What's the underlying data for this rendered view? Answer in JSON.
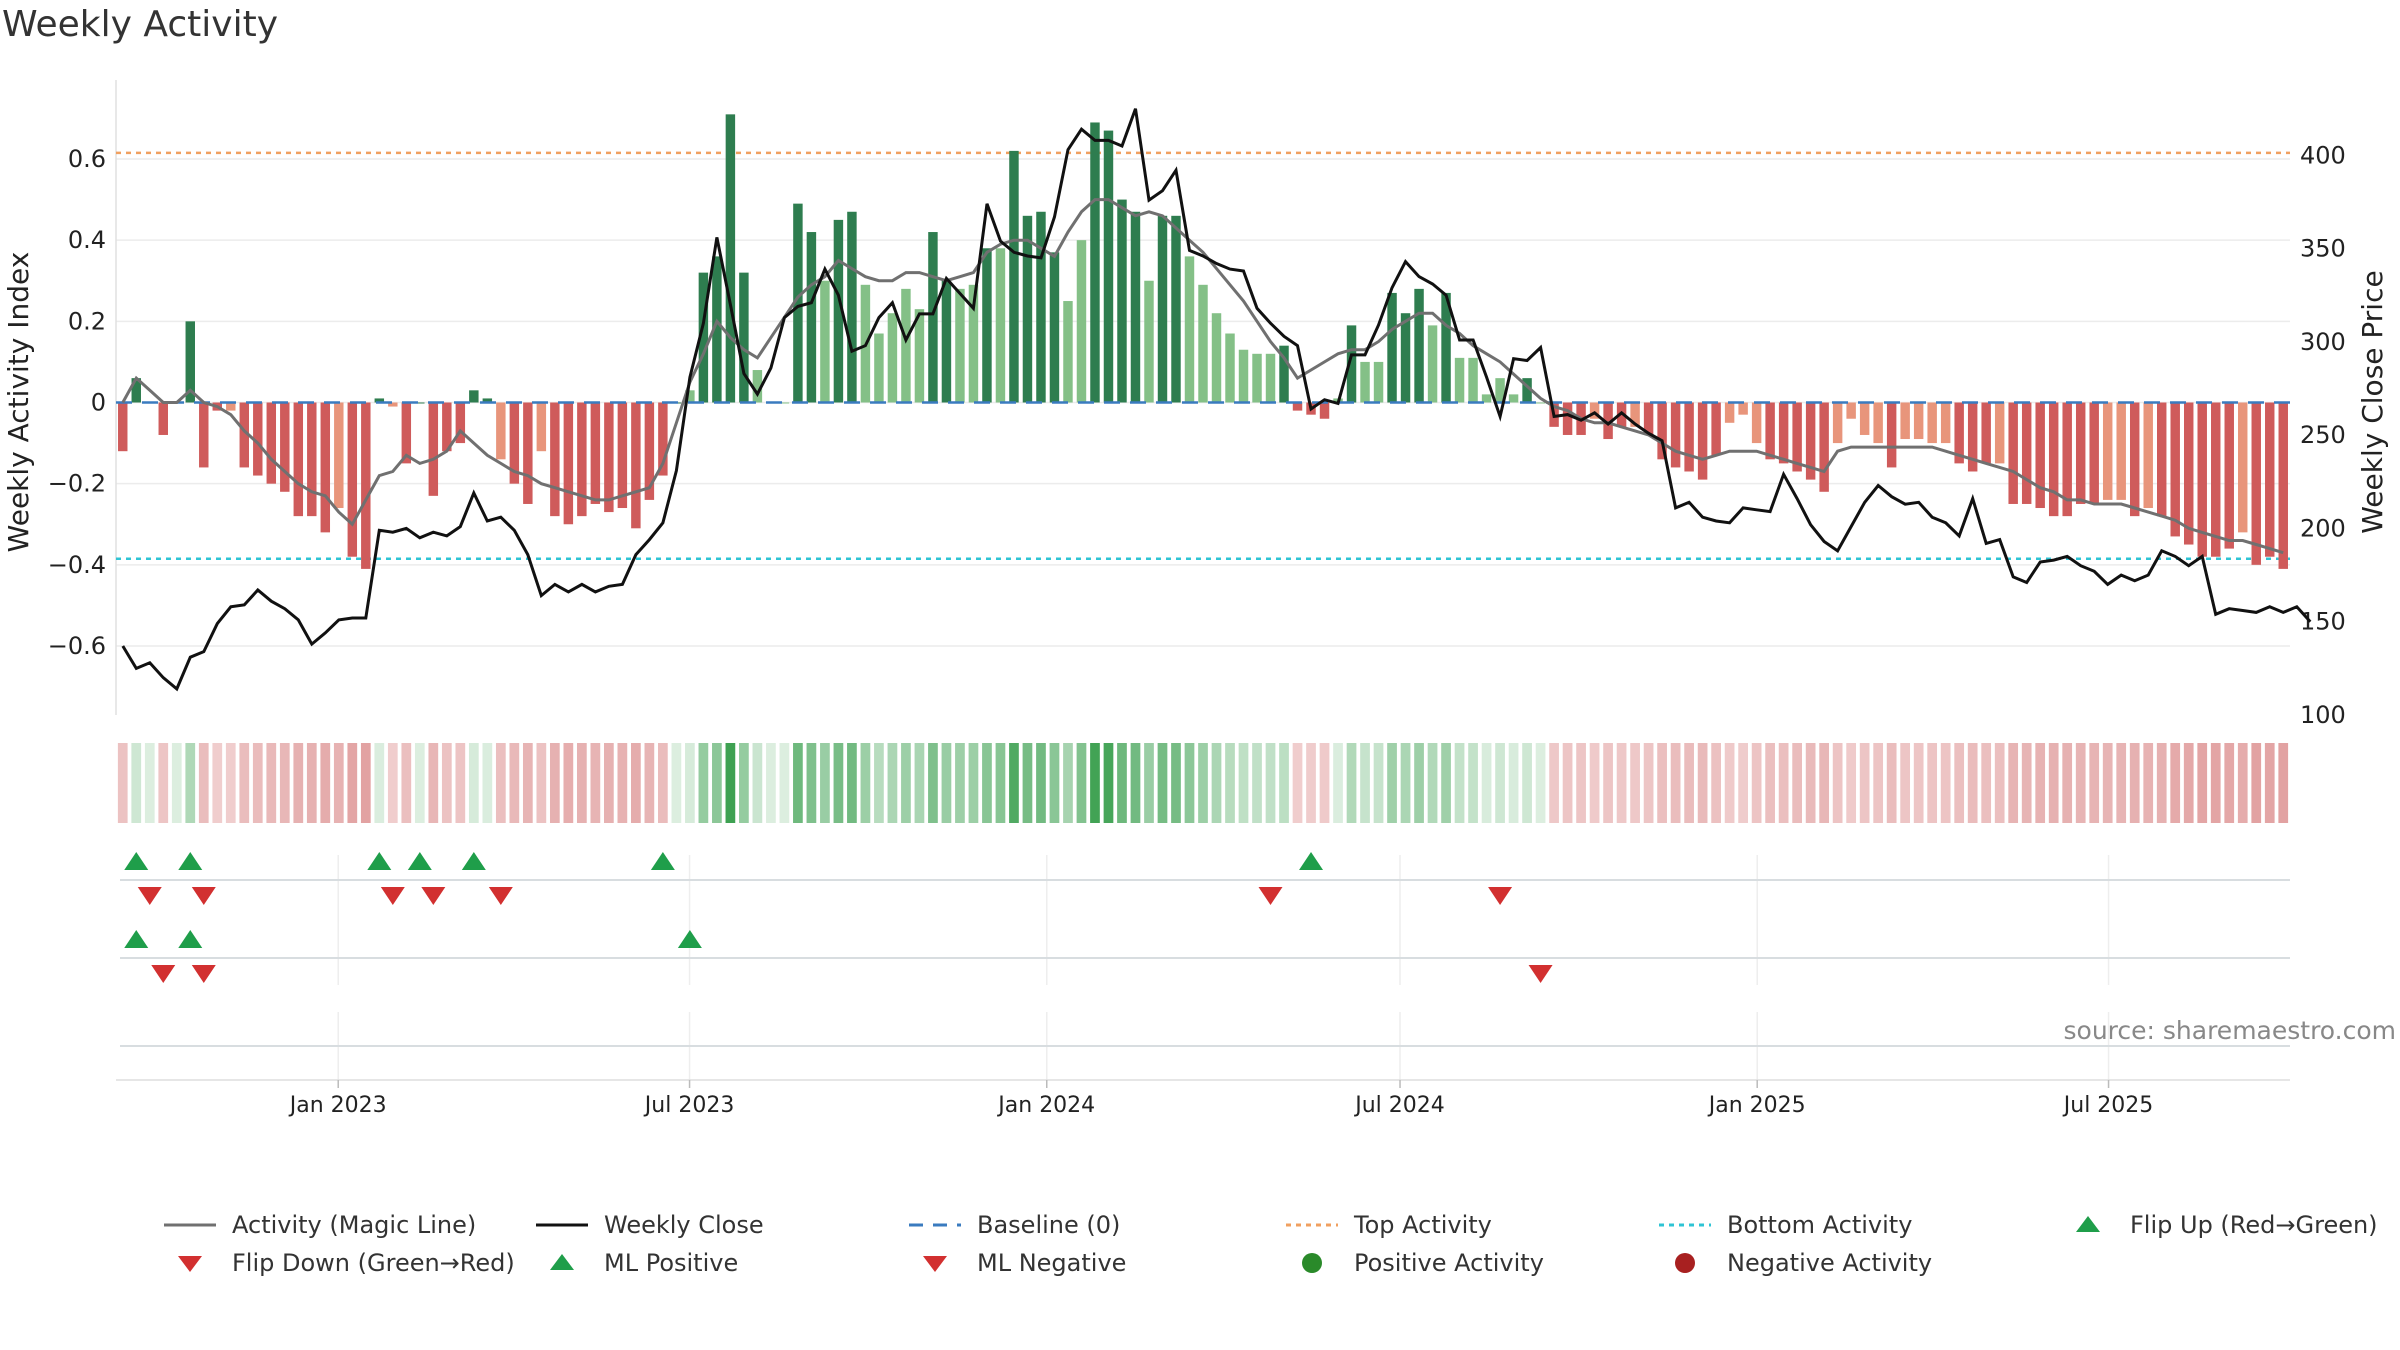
{
  "title": "Weekly Activity",
  "source": "source: sharemaestro.com",
  "colors": {
    "magic_line": "#707070",
    "close": "#111111",
    "baseline": "#3a7bbf",
    "top": "#f0a060",
    "bottom": "#2fc4d4",
    "pos_strong": "#2e7d4f",
    "pos_light": "#84c087",
    "neg_strong": "#cf5b5b",
    "neg_light": "#e8957b",
    "up_marker": "#1f9e4a",
    "down_marker": "#d23030",
    "pos_dot": "#2a8a2a",
    "neg_dot": "#a82020"
  },
  "chart_data": {
    "type": "bar",
    "title": "Weekly Activity",
    "ylabel_left": "Weekly Activity Index",
    "ylabel_right": "Weekly Close Price",
    "ylim_left": [
      -0.77,
      0.77
    ],
    "ylim_right": [
      100,
      435
    ],
    "yticks_left": [
      {
        "v": 0.6,
        "label": "0.6"
      },
      {
        "v": 0.4,
        "label": "0.4"
      },
      {
        "v": 0.2,
        "label": "0.2"
      },
      {
        "v": 0,
        "label": "0"
      },
      {
        "v": -0.2,
        "label": "−0.2"
      },
      {
        "v": -0.4,
        "label": "−0.4"
      },
      {
        "v": -0.6,
        "label": "−0.6"
      }
    ],
    "yticks_right": [
      {
        "v": 400,
        "label": "400"
      },
      {
        "v": 350,
        "label": "350"
      },
      {
        "v": 300,
        "label": "300"
      },
      {
        "v": 250,
        "label": "250"
      },
      {
        "v": 200,
        "label": "200"
      },
      {
        "v": 150,
        "label": "150"
      },
      {
        "v": 100,
        "label": "100"
      }
    ],
    "start_date": "2022-09-12",
    "end_date": "2025-09-29",
    "xticks": [
      {
        "date": "2023-01-01",
        "label": "Jan 2023"
      },
      {
        "date": "2023-07-01",
        "label": "Jul 2023"
      },
      {
        "date": "2024-01-01",
        "label": "Jan 2024"
      },
      {
        "date": "2024-07-01",
        "label": "Jul 2024"
      },
      {
        "date": "2025-01-01",
        "label": "Jan 2025"
      },
      {
        "date": "2025-07-01",
        "label": "Jul 2025"
      }
    ],
    "top_activity": 0.615,
    "bottom_activity": -0.385,
    "baseline": 0,
    "activity": [
      -0.12,
      0.06,
      0.0,
      -0.08,
      0.0,
      0.2,
      -0.16,
      -0.02,
      -0.02,
      -0.16,
      -0.18,
      -0.2,
      -0.22,
      -0.28,
      -0.28,
      -0.32,
      -0.26,
      -0.38,
      -0.41,
      0.01,
      -0.01,
      -0.15,
      0.0,
      -0.23,
      -0.12,
      -0.1,
      0.03,
      0.01,
      -0.14,
      -0.2,
      -0.25,
      -0.12,
      -0.28,
      -0.3,
      -0.28,
      -0.25,
      -0.27,
      -0.26,
      -0.31,
      -0.24,
      -0.18,
      0.0,
      0.03,
      0.32,
      0.36,
      0.71,
      0.32,
      0.08,
      0.0,
      0.0,
      0.49,
      0.42,
      0.3,
      0.45,
      0.47,
      0.29,
      0.17,
      0.22,
      0.28,
      0.23,
      0.42,
      0.3,
      0.28,
      0.29,
      0.38,
      0.38,
      0.62,
      0.46,
      0.47,
      0.37,
      0.25,
      0.4,
      0.69,
      0.67,
      0.5,
      0.47,
      0.3,
      0.46,
      0.46,
      0.36,
      0.29,
      0.22,
      0.17,
      0.13,
      0.12,
      0.12,
      0.14,
      -0.02,
      -0.03,
      -0.04,
      0.01,
      0.19,
      0.1,
      0.1,
      0.27,
      0.22,
      0.28,
      0.19,
      0.27,
      0.11,
      0.11,
      0.02,
      0.06,
      0.02,
      0.06,
      0.0,
      -0.06,
      -0.08,
      -0.08,
      -0.04,
      -0.09,
      -0.06,
      -0.06,
      -0.08,
      -0.14,
      -0.16,
      -0.17,
      -0.19,
      -0.13,
      -0.05,
      -0.03,
      -0.1,
      -0.14,
      -0.15,
      -0.17,
      -0.19,
      -0.22,
      -0.1,
      -0.04,
      -0.08,
      -0.1,
      -0.16,
      -0.09,
      -0.09,
      -0.1,
      -0.1,
      -0.15,
      -0.17,
      -0.15,
      -0.15,
      -0.25,
      -0.25,
      -0.26,
      -0.28,
      -0.28,
      -0.25,
      -0.25,
      -0.24,
      -0.24,
      -0.28,
      -0.26,
      -0.28,
      -0.33,
      -0.35,
      -0.38,
      -0.38,
      -0.36,
      -0.32,
      -0.4,
      -0.38,
      -0.41
    ],
    "magic_line": [
      0.0,
      0.06,
      0.03,
      0.0,
      0.0,
      0.03,
      0.0,
      -0.01,
      -0.03,
      -0.07,
      -0.1,
      -0.14,
      -0.17,
      -0.2,
      -0.22,
      -0.23,
      -0.27,
      -0.3,
      -0.24,
      -0.18,
      -0.17,
      -0.13,
      -0.15,
      -0.14,
      -0.12,
      -0.07,
      -0.1,
      -0.13,
      -0.15,
      -0.17,
      -0.18,
      -0.2,
      -0.21,
      -0.22,
      -0.23,
      -0.24,
      -0.24,
      -0.23,
      -0.22,
      -0.21,
      -0.15,
      -0.05,
      0.05,
      0.12,
      0.2,
      0.16,
      0.13,
      0.11,
      0.16,
      0.21,
      0.26,
      0.29,
      0.31,
      0.35,
      0.33,
      0.31,
      0.3,
      0.3,
      0.32,
      0.32,
      0.31,
      0.3,
      0.31,
      0.32,
      0.37,
      0.39,
      0.4,
      0.4,
      0.38,
      0.36,
      0.42,
      0.47,
      0.5,
      0.5,
      0.48,
      0.46,
      0.47,
      0.46,
      0.43,
      0.4,
      0.37,
      0.33,
      0.29,
      0.25,
      0.2,
      0.15,
      0.11,
      0.06,
      0.08,
      0.1,
      0.12,
      0.13,
      0.13,
      0.15,
      0.18,
      0.2,
      0.22,
      0.22,
      0.19,
      0.17,
      0.14,
      0.12,
      0.1,
      0.07,
      0.04,
      0.01,
      -0.01,
      -0.02,
      -0.04,
      -0.05,
      -0.05,
      -0.06,
      -0.07,
      -0.08,
      -0.1,
      -0.12,
      -0.13,
      -0.14,
      -0.13,
      -0.12,
      -0.12,
      -0.12,
      -0.13,
      -0.14,
      -0.15,
      -0.16,
      -0.17,
      -0.12,
      -0.11,
      -0.11,
      -0.11,
      -0.11,
      -0.11,
      -0.11,
      -0.11,
      -0.12,
      -0.13,
      -0.14,
      -0.15,
      -0.16,
      -0.17,
      -0.19,
      -0.21,
      -0.22,
      -0.24,
      -0.24,
      -0.25,
      -0.25,
      -0.25,
      -0.26,
      -0.27,
      -0.28,
      -0.29,
      -0.31,
      -0.32,
      -0.33,
      -0.34,
      -0.34,
      -0.35,
      -0.36,
      -0.37
    ],
    "close": [
      137,
      125,
      128,
      120,
      114,
      131,
      134,
      149,
      158,
      159,
      167,
      161,
      157,
      151,
      138,
      144,
      151,
      152,
      152,
      199,
      198,
      200,
      195,
      198,
      196,
      201,
      219,
      204,
      206,
      199,
      186,
      164,
      170,
      166,
      170,
      166,
      169,
      170,
      186,
      194,
      203,
      231,
      281,
      310,
      356,
      320,
      283,
      272,
      286,
      313,
      319,
      321,
      339,
      325,
      295,
      298,
      313,
      321,
      301,
      315,
      315,
      334,
      326,
      318,
      374,
      354,
      348,
      346,
      345,
      367,
      403,
      414,
      408,
      408,
      405,
      425,
      376,
      381,
      392,
      349,
      346,
      342,
      339,
      338,
      318,
      310,
      303,
      298,
      264,
      269,
      267,
      293,
      293,
      309,
      329,
      343,
      335,
      331,
      325,
      301,
      301,
      281,
      260,
      291,
      290,
      297,
      260,
      261,
      258,
      262,
      256,
      262,
      256,
      251,
      247,
      211,
      214,
      206,
      204,
      203,
      211,
      210,
      209,
      229,
      216,
      202,
      193,
      188,
      201,
      214,
      223,
      217,
      213,
      214,
      206,
      203,
      196,
      216,
      192,
      194,
      174,
      171,
      182,
      183,
      185,
      180,
      177,
      170,
      175,
      172,
      175,
      188,
      185,
      180,
      185,
      154,
      157,
      156,
      155,
      158,
      155,
      158,
      150
    ],
    "activity_flip_up_idx": [
      1,
      5,
      19,
      22,
      26,
      40,
      88
    ],
    "activity_flip_down_idx": [
      2,
      6,
      20,
      23,
      28,
      85,
      102
    ],
    "ml_flip_up_idx": [
      1,
      5,
      42
    ],
    "ml_flip_down_idx": [
      3,
      6,
      105
    ],
    "legend": [
      {
        "key": "magic",
        "label": "Activity (Magic Line)"
      },
      {
        "key": "close",
        "label": "Weekly Close"
      },
      {
        "key": "baseline",
        "label": "Baseline (0)"
      },
      {
        "key": "top",
        "label": "Top Activity"
      },
      {
        "key": "bottom",
        "label": "Bottom Activity"
      },
      {
        "key": "flip_up",
        "label": "Flip Up (Red→Green)"
      },
      {
        "key": "flip_down",
        "label": "Flip Down (Green→Red)"
      },
      {
        "key": "ml_pos",
        "label": "ML Positive"
      },
      {
        "key": "ml_neg",
        "label": "ML Negative"
      },
      {
        "key": "pos_act",
        "label": "Positive Activity"
      },
      {
        "key": "neg_act",
        "label": "Negative Activity"
      }
    ]
  }
}
